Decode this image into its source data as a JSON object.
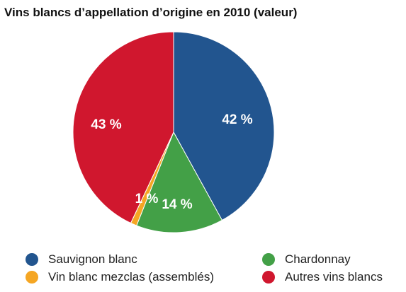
{
  "chart_data": {
    "type": "pie",
    "title": "Vins blancs d’appellation d’origine en 2010 (valeur)",
    "slices": [
      {
        "name": "Sauvignon blanc",
        "value": 42,
        "label": "42 %",
        "color": "#22558f"
      },
      {
        "name": "Chardonnay",
        "value": 14,
        "label": "14 %",
        "color": "#43a047"
      },
      {
        "name": "Vin blanc mezclas (assemblés)",
        "value": 1,
        "label": "1 %",
        "color": "#f5a623"
      },
      {
        "name": "Autres vins blancs",
        "value": 43,
        "label": "43 %",
        "color": "#d0172e"
      }
    ],
    "legend": {
      "placement": "bottom"
    }
  }
}
